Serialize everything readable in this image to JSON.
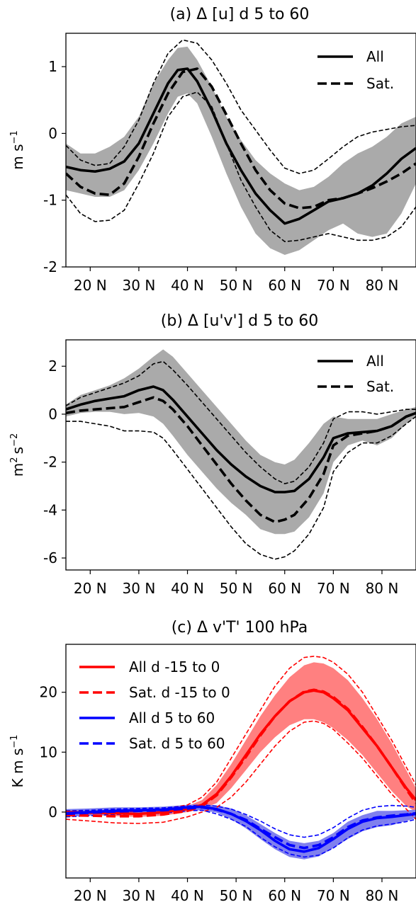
{
  "chart_data": [
    {
      "type": "line",
      "title": "(a) Δ [u] d 5 to 60",
      "ylabel_main": "m s",
      "ylabel_sup": "−1",
      "xlabel": "",
      "xlim": [
        15,
        87
      ],
      "ylim": [
        -2,
        1.5
      ],
      "xticks": [
        20,
        30,
        40,
        50,
        60,
        70,
        80
      ],
      "xticklabels": [
        "20 N",
        "30 N",
        "40 N",
        "50 N",
        "60 N",
        "70 N",
        "80 N"
      ],
      "yticks": [
        -2,
        -1,
        0,
        1
      ],
      "yticklabels": [
        "-2",
        "-1",
        "0",
        "1"
      ],
      "legend": {
        "position": "upper-right",
        "entries": [
          {
            "label": "All",
            "style": "solid",
            "color": "#000000"
          },
          {
            "label": "Sat.",
            "style": "dashed",
            "color": "#000000"
          }
        ]
      },
      "band_color": "#aaaaaa",
      "series": [
        {
          "name": "All",
          "style": "solid",
          "color": "#000000",
          "x": [
            15,
            18,
            21,
            24,
            27,
            30,
            33,
            36,
            38,
            40,
            42,
            45,
            48,
            51,
            54,
            57,
            60,
            63,
            66,
            69,
            72,
            75,
            78,
            81,
            84,
            87
          ],
          "y": [
            -0.5,
            -0.55,
            -0.57,
            -0.53,
            -0.42,
            -0.15,
            0.3,
            0.75,
            0.95,
            0.97,
            0.78,
            0.35,
            -0.15,
            -0.55,
            -0.9,
            -1.15,
            -1.35,
            -1.28,
            -1.15,
            -1.02,
            -0.97,
            -0.9,
            -0.78,
            -0.6,
            -0.38,
            -0.22
          ],
          "band_upper": [
            -0.15,
            -0.3,
            -0.3,
            -0.2,
            -0.05,
            0.25,
            0.75,
            1.1,
            1.28,
            1.3,
            1.1,
            0.7,
            0.25,
            -0.1,
            -0.4,
            -0.6,
            -0.75,
            -0.85,
            -0.8,
            -0.65,
            -0.45,
            -0.3,
            -0.2,
            -0.05,
            0.15,
            0.25
          ],
          "band_lower": [
            -0.85,
            -0.9,
            -0.95,
            -0.95,
            -0.85,
            -0.55,
            -0.15,
            0.3,
            0.55,
            0.6,
            0.45,
            -0.05,
            -0.6,
            -1.1,
            -1.5,
            -1.72,
            -1.82,
            -1.75,
            -1.6,
            -1.45,
            -1.35,
            -1.5,
            -1.55,
            -1.5,
            -1.2,
            -0.75
          ]
        },
        {
          "name": "Sat.",
          "style": "dashed",
          "color": "#000000",
          "x": [
            15,
            18,
            21,
            24,
            27,
            30,
            33,
            36,
            39,
            42,
            45,
            48,
            51,
            54,
            57,
            60,
            63,
            66,
            69,
            72,
            75,
            78,
            81,
            84,
            87
          ],
          "y": [
            -0.6,
            -0.8,
            -0.9,
            -0.92,
            -0.75,
            -0.35,
            0.15,
            0.6,
            0.92,
            0.97,
            0.7,
            0.28,
            -0.15,
            -0.55,
            -0.85,
            -1.05,
            -1.12,
            -1.1,
            -1.0,
            -0.97,
            -0.9,
            -0.82,
            -0.72,
            -0.6,
            -0.45
          ],
          "upper": [
            -0.18,
            -0.4,
            -0.48,
            -0.45,
            -0.2,
            0.2,
            0.75,
            1.2,
            1.4,
            1.35,
            1.1,
            0.75,
            0.35,
            0.05,
            -0.25,
            -0.52,
            -0.6,
            -0.55,
            -0.38,
            -0.2,
            -0.05,
            0.02,
            0.06,
            0.1,
            0.12
          ],
          "lower": [
            -0.92,
            -1.2,
            -1.32,
            -1.3,
            -1.15,
            -0.75,
            -0.3,
            0.25,
            0.55,
            0.62,
            0.4,
            -0.15,
            -0.7,
            -1.1,
            -1.45,
            -1.62,
            -1.6,
            -1.55,
            -1.5,
            -1.55,
            -1.6,
            -1.6,
            -1.55,
            -1.4,
            -1.1
          ]
        }
      ]
    },
    {
      "type": "line",
      "title": "(b) Δ [u'v'] d 5 to 60",
      "ylabel_main": "m",
      "ylabel_mid": "s",
      "ylabel_sup1": "2",
      "ylabel_sup": "−2",
      "xlabel": "",
      "xlim": [
        15,
        87
      ],
      "ylim": [
        -6.5,
        3.1
      ],
      "xticks": [
        20,
        30,
        40,
        50,
        60,
        70,
        80
      ],
      "xticklabels": [
        "20 N",
        "30 N",
        "40 N",
        "50 N",
        "60 N",
        "70 N",
        "80 N"
      ],
      "yticks": [
        -6,
        -4,
        -2,
        0,
        2
      ],
      "yticklabels": [
        "-6",
        "-4",
        "-2",
        "0",
        "2"
      ],
      "legend": {
        "position": "upper-right",
        "entries": [
          {
            "label": "All",
            "style": "solid",
            "color": "#000000"
          },
          {
            "label": "Sat.",
            "style": "dashed",
            "color": "#000000"
          }
        ]
      },
      "band_color": "#aaaaaa",
      "series": [
        {
          "name": "All",
          "style": "solid",
          "color": "#000000",
          "x": [
            15,
            18,
            21,
            24,
            27,
            30,
            33,
            35,
            37,
            40,
            43,
            46,
            49,
            52,
            55,
            58,
            60,
            62,
            65,
            68,
            70,
            73,
            76,
            79,
            82,
            85,
            87
          ],
          "y": [
            0.2,
            0.4,
            0.55,
            0.65,
            0.75,
            1.0,
            1.15,
            1.0,
            0.6,
            -0.1,
            -0.8,
            -1.5,
            -2.1,
            -2.6,
            -3.0,
            -3.25,
            -3.25,
            -3.2,
            -2.7,
            -1.8,
            -1.0,
            -0.8,
            -0.75,
            -0.7,
            -0.5,
            -0.1,
            0.05
          ],
          "band_upper": [
            0.4,
            0.8,
            1.0,
            1.2,
            1.5,
            1.9,
            2.4,
            2.7,
            2.4,
            1.7,
            1.0,
            0.3,
            -0.4,
            -1.1,
            -1.7,
            -2.0,
            -2.1,
            -1.9,
            -1.2,
            -0.4,
            -0.1,
            -0.2,
            -0.2,
            -0.2,
            0.0,
            0.2,
            0.3
          ],
          "band_lower": [
            -0.1,
            0.05,
            0.1,
            0.1,
            0.0,
            0.05,
            -0.1,
            -0.4,
            -0.9,
            -1.7,
            -2.4,
            -3.1,
            -3.7,
            -4.2,
            -4.8,
            -5.0,
            -5.0,
            -4.9,
            -4.3,
            -3.3,
            -2.0,
            -1.3,
            -1.1,
            -1.3,
            -1.0,
            -0.4,
            -0.1
          ]
        },
        {
          "name": "Sat.",
          "style": "dashed",
          "color": "#000000",
          "x": [
            15,
            18,
            21,
            24,
            27,
            30,
            33,
            35,
            37,
            40,
            43,
            46,
            49,
            52,
            55,
            58,
            60,
            62,
            65,
            68,
            70,
            73,
            76,
            79,
            82,
            85,
            87
          ],
          "y": [
            0.05,
            0.15,
            0.2,
            0.25,
            0.3,
            0.5,
            0.7,
            0.55,
            0.2,
            -0.5,
            -1.3,
            -2.1,
            -2.9,
            -3.6,
            -4.2,
            -4.5,
            -4.4,
            -4.2,
            -3.5,
            -2.5,
            -1.3,
            -0.9,
            -0.8,
            -0.7,
            -0.5,
            -0.1,
            0.05
          ],
          "upper": [
            0.35,
            0.7,
            0.9,
            1.1,
            1.3,
            1.6,
            2.1,
            2.2,
            1.85,
            1.2,
            0.5,
            -0.2,
            -0.9,
            -1.6,
            -2.2,
            -2.7,
            -2.9,
            -2.8,
            -2.2,
            -1.2,
            -0.2,
            0.1,
            0.1,
            0.0,
            0.1,
            0.2,
            0.2
          ],
          "lower": [
            -0.3,
            -0.3,
            -0.4,
            -0.5,
            -0.7,
            -0.7,
            -0.75,
            -1.0,
            -1.5,
            -2.3,
            -3.1,
            -3.9,
            -4.7,
            -5.4,
            -5.85,
            -6.05,
            -5.95,
            -5.7,
            -5.0,
            -3.9,
            -2.4,
            -1.6,
            -1.2,
            -1.2,
            -0.9,
            -0.4,
            -0.1
          ]
        }
      ]
    },
    {
      "type": "line",
      "title": "(c) Δ v'T' 100 hPa",
      "ylabel_main": "K m s",
      "ylabel_sup": "−1",
      "xlabel": "",
      "xlim": [
        15,
        87
      ],
      "ylim": [
        -11,
        28
      ],
      "xticks": [
        20,
        30,
        40,
        50,
        60,
        70,
        80
      ],
      "xticklabels": [
        "20 N",
        "30 N",
        "40 N",
        "50 N",
        "60 N",
        "70 N",
        "80 N"
      ],
      "yticks": [
        0,
        10,
        20
      ],
      "yticklabels": [
        "0",
        "10",
        "20"
      ],
      "legend": {
        "position": "upper-left",
        "entries": [
          {
            "label": "All d -15 to 0",
            "style": "solid",
            "color": "#ff0000"
          },
          {
            "label": "Sat. d -15 to 0",
            "style": "dashed",
            "color": "#ff0000"
          },
          {
            "label": "All d 5 to 60",
            "style": "solid",
            "color": "#0000ff"
          },
          {
            "label": "Sat. d 5 to 60",
            "style": "dashed",
            "color": "#0000ff"
          }
        ]
      },
      "series": [
        {
          "name": "All d -15 to 0",
          "style": "solid",
          "color": "#ff0000",
          "band_color": "#ff8080",
          "x": [
            15,
            20,
            25,
            30,
            35,
            40,
            43,
            46,
            49,
            52,
            55,
            58,
            61,
            64,
            66,
            68,
            70,
            73,
            76,
            79,
            82,
            85,
            87
          ],
          "y": [
            0,
            -0.1,
            -0.2,
            -0.3,
            0,
            0.5,
            1.2,
            3,
            6,
            9.5,
            13,
            16,
            18.5,
            20,
            20.3,
            20,
            19,
            17,
            14,
            11,
            7.5,
            4,
            2
          ],
          "band_upper": [
            0.3,
            0.3,
            0.3,
            0.2,
            0.5,
            1.0,
            2,
            4.5,
            8,
            12,
            16,
            19.5,
            22.5,
            24.5,
            25,
            24.8,
            24,
            22,
            19,
            15.5,
            11.5,
            7,
            4
          ],
          "band_lower": [
            -0.3,
            -0.5,
            -0.7,
            -0.8,
            -0.6,
            0,
            0.5,
            1.5,
            4,
            7,
            10,
            12.5,
            14.5,
            15.5,
            15.5,
            15,
            14,
            12,
            9.5,
            6.5,
            3.5,
            1,
            0
          ]
        },
        {
          "name": "Sat. d -15 to 0",
          "style": "dashed",
          "color": "#ff0000",
          "x": [
            15,
            20,
            25,
            30,
            35,
            40,
            43,
            46,
            49,
            52,
            55,
            58,
            61,
            64,
            66,
            68,
            70,
            73,
            76,
            79,
            82,
            85,
            87
          ],
          "y": [
            -0.5,
            -0.6,
            -0.7,
            -0.7,
            -0.4,
            0.2,
            1.0,
            2.8,
            5.8,
            9.2,
            12.8,
            16,
            18.5,
            20.1,
            20.4,
            20.1,
            19.2,
            17.2,
            14.2,
            11,
            7.5,
            3.8,
            1.5
          ],
          "upper": [
            0.2,
            0.2,
            0.1,
            0.1,
            0.5,
            1.2,
            2.5,
            5,
            9,
            13,
            17,
            21,
            24,
            25.8,
            26,
            25.8,
            25,
            23,
            20,
            16,
            12,
            7.5,
            4.5
          ],
          "lower": [
            -1.2,
            -1.5,
            -1.8,
            -1.9,
            -1.7,
            -0.8,
            0,
            0.8,
            2.5,
            5,
            8,
            11,
            13.5,
            15,
            15.2,
            14.8,
            13.8,
            11.5,
            9,
            6,
            3,
            0.5,
            -1.2
          ]
        },
        {
          "name": "All d 5 to 60",
          "style": "solid",
          "color": "#0000ff",
          "band_color": "#8080ee",
          "x": [
            15,
            20,
            25,
            30,
            35,
            40,
            43,
            46,
            49,
            52,
            55,
            58,
            61,
            64,
            67,
            70,
            73,
            76,
            79,
            82,
            85,
            87
          ],
          "y": [
            -0.2,
            0,
            0.2,
            0.3,
            0.4,
            0.8,
            0.9,
            0.5,
            -0.3,
            -1.5,
            -3,
            -4.8,
            -6.2,
            -6.6,
            -6,
            -4.5,
            -2.8,
            -1.6,
            -1.0,
            -0.8,
            -0.5,
            -0.3
          ],
          "band_upper": [
            0.5,
            0.6,
            0.8,
            0.8,
            0.9,
            1.2,
            1.3,
            1.1,
            0.6,
            -0.5,
            -2,
            -3.5,
            -4.8,
            -5.2,
            -4.8,
            -3.5,
            -1.6,
            -0.5,
            0.2,
            0.2,
            0.3,
            0.4
          ],
          "band_lower": [
            -0.8,
            -0.6,
            -0.4,
            -0.3,
            -0.2,
            0.2,
            0.3,
            -0.1,
            -1.2,
            -2.7,
            -4.5,
            -6.2,
            -7.5,
            -7.9,
            -7.4,
            -6,
            -4.5,
            -3.2,
            -2.5,
            -2.2,
            -1.5,
            -1
          ]
        },
        {
          "name": "Sat. d 5 to 60",
          "style": "dashed",
          "color": "#0000ff",
          "x": [
            15,
            20,
            25,
            30,
            35,
            40,
            43,
            46,
            49,
            52,
            55,
            58,
            61,
            64,
            67,
            70,
            73,
            76,
            79,
            82,
            85,
            87
          ],
          "y": [
            -0.3,
            -0.1,
            0.1,
            0.2,
            0.3,
            0.6,
            0.8,
            0.4,
            -0.3,
            -1.3,
            -2.8,
            -4.2,
            -5.5,
            -6,
            -5.5,
            -4.2,
            -2.5,
            -1.4,
            -0.9,
            -0.6,
            -0.4,
            -0.2
          ],
          "upper": [
            0.2,
            0.3,
            0.5,
            0.6,
            0.7,
            1.0,
            1.2,
            1.0,
            0.5,
            -0.4,
            -1.5,
            -2.8,
            -3.8,
            -4.2,
            -3.8,
            -2.6,
            -1.0,
            0.3,
            0.9,
            1.1,
            1.0,
            0.8
          ],
          "lower": [
            -0.8,
            -0.6,
            -0.4,
            -0.3,
            -0.2,
            0.2,
            0.3,
            -0.3,
            -1.2,
            -2.4,
            -4.2,
            -5.8,
            -7.0,
            -7.5,
            -7.2,
            -6,
            -4.3,
            -3.0,
            -2.3,
            -2.0,
            -1.6,
            -1.2
          ]
        }
      ]
    }
  ]
}
